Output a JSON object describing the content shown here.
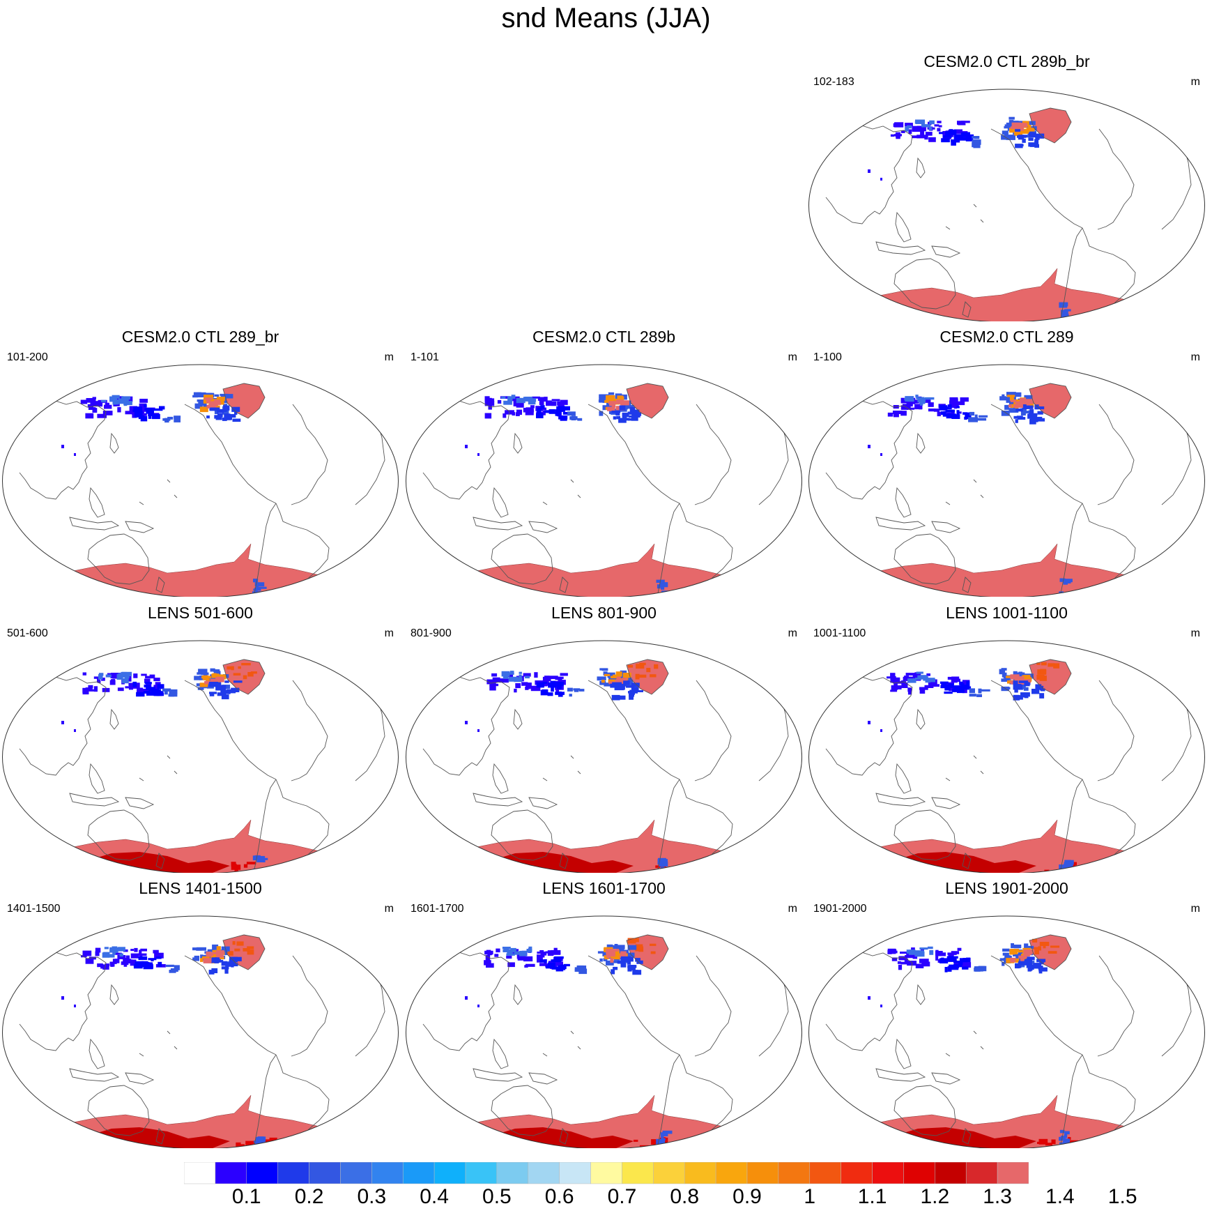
{
  "title": "snd Means (JJA)",
  "unit_label": "m",
  "panels": [
    {
      "title": "CESM2.0 CTL 289b_br",
      "years": "102-183",
      "row": 0,
      "col": 2,
      "antarctic_high": false
    },
    {
      "title": "CESM2.0 CTL 289_br",
      "years": "101-200",
      "row": 1,
      "col": 0,
      "antarctic_high": false
    },
    {
      "title": "CESM2.0 CTL 289b",
      "years": "1-101",
      "row": 1,
      "col": 1,
      "antarctic_high": false
    },
    {
      "title": "CESM2.0 CTL 289",
      "years": "1-100",
      "row": 1,
      "col": 2,
      "antarctic_high": false
    },
    {
      "title": "LENS 501-600",
      "years": "501-600",
      "row": 2,
      "col": 0,
      "antarctic_high": true
    },
    {
      "title": "LENS 801-900",
      "years": "801-900",
      "row": 2,
      "col": 1,
      "antarctic_high": true
    },
    {
      "title": "LENS 1001-1100",
      "years": "1001-1100",
      "row": 2,
      "col": 2,
      "antarctic_high": true
    },
    {
      "title": "LENS 1401-1500",
      "years": "1401-1500",
      "row": 3,
      "col": 0,
      "antarctic_high": true
    },
    {
      "title": "LENS 1601-1700",
      "years": "1601-1700",
      "row": 3,
      "col": 1,
      "antarctic_high": true
    },
    {
      "title": "LENS 1901-2000",
      "years": "1901-2000",
      "row": 3,
      "col": 2,
      "antarctic_high": true
    }
  ],
  "colorbar": {
    "colors": [
      "#ffffff",
      "#2b00ff",
      "#0000ff",
      "#1f3aea",
      "#3357e2",
      "#3b6fe6",
      "#3283ef",
      "#1a9af8",
      "#0fb0fb",
      "#39c3f7",
      "#7ccbf0",
      "#a2d6f2",
      "#c8e6f6",
      "#fffaa0",
      "#fbe74c",
      "#fbd13a",
      "#f9bb1e",
      "#f9a60d",
      "#f68f0b",
      "#f37711",
      "#f25711",
      "#f02c10",
      "#ec0f0f",
      "#df0202",
      "#c40000",
      "#d8282b",
      "#e6686a"
    ],
    "labels": [
      "0.1",
      "0.2",
      "0.3",
      "0.4",
      "0.5",
      "0.6",
      "0.7",
      "0.8",
      "0.9",
      "1",
      "1.1",
      "1.2",
      "1.3",
      "1.4",
      "1.5"
    ]
  }
}
